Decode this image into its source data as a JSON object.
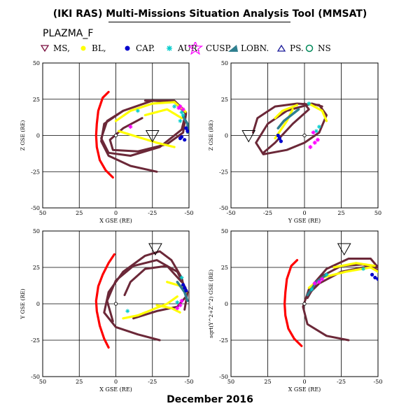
{
  "title": "(IKI RAS) Multi-Missions Situation Analysis Tool (MMSAT)",
  "subtitle": "PLAZMA_F",
  "footer": "December 2016",
  "legend": [
    {
      "symbol": "triangle-down",
      "color": "#7a1040",
      "label": "MS,"
    },
    {
      "symbol": "dot",
      "color": "#ffff00",
      "label": "BL,"
    },
    {
      "symbol": "dot",
      "color": "#0000cc",
      "label": "CAP."
    },
    {
      "symbol": "asterisk",
      "color": "#00cccc",
      "label": "AUR."
    },
    {
      "symbol": "star",
      "color": "#ff00ff",
      "label": "CUSP."
    },
    {
      "symbol": "wedge",
      "color": "#2f7f8f",
      "label": "LOBN."
    },
    {
      "symbol": "triangle-up",
      "color": "#1a1a99",
      "label": "PS."
    },
    {
      "symbol": "circle",
      "color": "#008a5a",
      "label": "NS"
    }
  ],
  "colors": {
    "orbit": "#6b2838",
    "boundary": "#ff0000",
    "bl": "#ffff00",
    "cap": "#0000cc",
    "aur": "#00cccc",
    "cusp": "#ff00ff",
    "lobn": "#2f7f8f"
  },
  "chart_data": [
    {
      "type": "scatter",
      "xlabel": "X GSE (RE)",
      "ylabel": "Z GSE (RE)",
      "xlim": [
        50,
        -50
      ],
      "ylim": [
        -50,
        50
      ],
      "xticks": [
        "50",
        "25",
        "0",
        "-25",
        "-50"
      ],
      "yticks": [
        "-50",
        "-25",
        "0",
        "25",
        "50"
      ],
      "grid": true,
      "marker_ms": [
        -25,
        0
      ],
      "magnetopause": [
        [
          5,
          30
        ],
        [
          9,
          26
        ],
        [
          12,
          17
        ],
        [
          13,
          8
        ],
        [
          13.5,
          0
        ],
        [
          13,
          -8
        ],
        [
          11,
          -17
        ],
        [
          7,
          -24
        ],
        [
          2,
          -29
        ]
      ],
      "orbits": [
        [
          [
            -28,
            -25
          ],
          [
            -10,
            -21
          ],
          [
            5,
            -14
          ],
          [
            10,
            -4
          ],
          [
            8,
            8
          ],
          [
            -5,
            17
          ],
          [
            -25,
            24
          ],
          [
            -40,
            23
          ],
          [
            -48,
            15
          ],
          [
            -46,
            2
          ],
          [
            -35,
            -6
          ],
          [
            -15,
            -11
          ],
          [
            2,
            -10
          ],
          [
            4,
            -3
          ],
          [
            -5,
            5
          ],
          [
            -18,
            12
          ]
        ],
        [
          [
            -5,
            17
          ],
          [
            6,
            10
          ],
          [
            10,
            -2
          ],
          [
            5,
            -12
          ],
          [
            -10,
            -14
          ],
          [
            -30,
            -8
          ],
          [
            -45,
            4
          ],
          [
            -48,
            16
          ],
          [
            -40,
            24
          ],
          [
            -20,
            24
          ]
        ]
      ],
      "bl_segments": [
        [
          [
            0,
            10
          ],
          [
            -10,
            17
          ],
          [
            -25,
            22
          ],
          [
            -40,
            23
          ],
          [
            -48,
            16
          ]
        ],
        [
          [
            -40,
            -8
          ],
          [
            -28,
            -5
          ],
          [
            -15,
            -1
          ],
          [
            -2,
            3
          ]
        ],
        [
          [
            -20,
            14
          ],
          [
            -35,
            18
          ],
          [
            -45,
            12
          ]
        ]
      ],
      "cap_points": [
        [
          -47,
          -3
        ],
        [
          -45,
          -1
        ],
        [
          -44,
          -2
        ],
        [
          -49,
          3
        ],
        [
          -48,
          5
        ]
      ],
      "aur_points": [
        [
          -45,
          16
        ],
        [
          -46,
          14
        ],
        [
          -44,
          10
        ],
        [
          -15,
          17
        ],
        [
          -40,
          20
        ]
      ],
      "cusp_points": [
        [
          -44,
          20
        ],
        [
          -46,
          18
        ],
        [
          -43,
          19
        ],
        [
          -10,
          6
        ]
      ],
      "lobn_segments": [
        [
          [
            -46,
            13
          ],
          [
            -49,
            8
          ],
          [
            -49,
            2
          ]
        ]
      ]
    },
    {
      "type": "scatter",
      "xlabel": "Y GSE (RE)",
      "ylabel": "Z GSE (RE)",
      "xlim": [
        -50,
        50
      ],
      "ylim": [
        -50,
        50
      ],
      "xticks": [
        "-50",
        "-25",
        "0",
        "25",
        "50"
      ],
      "yticks": [
        "-50",
        "-25",
        "0",
        "25",
        "50"
      ],
      "grid": true,
      "marker_ms": [
        -38,
        0
      ],
      "orbits": [
        [
          [
            -35,
            2
          ],
          [
            -32,
            12
          ],
          [
            -20,
            20
          ],
          [
            -5,
            22
          ],
          [
            10,
            21
          ],
          [
            15,
            14
          ],
          [
            10,
            2
          ],
          [
            0,
            -5
          ],
          [
            -12,
            -10
          ],
          [
            -28,
            -13
          ],
          [
            -33,
            -5
          ],
          [
            -25,
            8
          ],
          [
            -12,
            17
          ],
          [
            5,
            22
          ],
          [
            12,
            20
          ]
        ],
        [
          [
            -28,
            -12
          ],
          [
            -20,
            -5
          ],
          [
            -8,
            8
          ],
          [
            3,
            18
          ],
          [
            0,
            22
          ]
        ]
      ],
      "bl_segments": [
        [
          [
            -8,
            18
          ],
          [
            -12,
            10
          ],
          [
            -16,
            4
          ],
          [
            -20,
            -2
          ]
        ],
        [
          [
            3,
            22
          ],
          [
            12,
            17
          ],
          [
            15,
            10
          ]
        ],
        [
          [
            -20,
            12
          ],
          [
            -15,
            17
          ],
          [
            -5,
            21
          ]
        ]
      ],
      "cap_points": [
        [
          -17,
          -2
        ],
        [
          -16,
          -4
        ],
        [
          -18,
          0
        ]
      ],
      "aur_points": [
        [
          8,
          3
        ],
        [
          10,
          6
        ],
        [
          3,
          22
        ]
      ],
      "cusp_points": [
        [
          7,
          -5
        ],
        [
          9,
          -3
        ],
        [
          4,
          -8
        ],
        [
          6,
          2
        ]
      ],
      "lobn_segments": [
        [
          [
            -18,
            5
          ],
          [
            -14,
            10
          ],
          [
            -9,
            14
          ],
          [
            -4,
            18
          ]
        ]
      ]
    },
    {
      "type": "scatter",
      "xlabel": "X GSE (RE)",
      "ylabel": "Y GSE (RE)",
      "xlim": [
        50,
        -50
      ],
      "ylim": [
        50,
        -50
      ],
      "xticks": [
        "50",
        "25",
        "0",
        "-25",
        "-50"
      ],
      "yticks": [
        "-50",
        "-25",
        "0",
        "25",
        "50"
      ],
      "grid": true,
      "marker_ms": [
        -27,
        -38
      ],
      "magnetopause": [
        [
          5,
          30
        ],
        [
          8,
          24
        ],
        [
          11,
          15
        ],
        [
          13,
          5
        ],
        [
          13.5,
          -2
        ],
        [
          12,
          -12
        ],
        [
          9,
          -20
        ],
        [
          5,
          -28
        ],
        [
          1,
          -34
        ]
      ],
      "orbits": [
        [
          [
            -30,
            25
          ],
          [
            -15,
            21
          ],
          [
            0,
            16
          ],
          [
            8,
            6
          ],
          [
            5,
            -8
          ],
          [
            -5,
            -22
          ],
          [
            -20,
            -33
          ],
          [
            -30,
            -36
          ],
          [
            -38,
            -30
          ],
          [
            -45,
            -18
          ],
          [
            -48,
            -5
          ],
          [
            -42,
            2
          ],
          [
            -28,
            5
          ],
          [
            -12,
            10
          ]
        ],
        [
          [
            2,
            12
          ],
          [
            6,
            -2
          ],
          [
            0,
            -16
          ],
          [
            -12,
            -26
          ],
          [
            -28,
            -30
          ],
          [
            -42,
            -22
          ],
          [
            -49,
            -8
          ],
          [
            -47,
            4
          ]
        ],
        [
          [
            -6,
            -6
          ],
          [
            -10,
            -15
          ],
          [
            -20,
            -24
          ],
          [
            -35,
            -26
          ],
          [
            -45,
            -15
          ]
        ]
      ],
      "bl_segments": [
        [
          [
            -5,
            10
          ],
          [
            -15,
            8
          ],
          [
            -25,
            4
          ],
          [
            -35,
            0
          ],
          [
            -42,
            -5
          ]
        ],
        [
          [
            -35,
            -15
          ],
          [
            -45,
            -12
          ],
          [
            -48,
            -8
          ]
        ],
        [
          [
            -28,
            1
          ],
          [
            -38,
            3
          ],
          [
            -44,
            6
          ]
        ]
      ],
      "cap_points": [
        [
          -46,
          -13
        ],
        [
          -47,
          -11
        ],
        [
          -48,
          -9
        ]
      ],
      "aur_points": [
        [
          -45,
          -18
        ],
        [
          -8,
          5
        ],
        [
          -42,
          -1
        ]
      ],
      "cusp_points": [
        [
          -44,
          1
        ],
        [
          -42,
          3
        ],
        [
          -45,
          -2
        ]
      ],
      "lobn_segments": [
        [
          [
            -42,
            -15
          ],
          [
            -47,
            -8
          ],
          [
            -49,
            -2
          ]
        ]
      ]
    },
    {
      "type": "scatter",
      "xlabel": "X GSE (RE)",
      "ylabel": "sqrt(Y^2+Z^2) GSE (RE)",
      "xlim": [
        50,
        -50
      ],
      "ylim": [
        50,
        -50
      ],
      "xticks": [
        "50",
        "25",
        "0",
        "-25",
        "-50"
      ],
      "yticks": [
        "-50",
        "-25",
        "0",
        "25",
        "50"
      ],
      "grid": true,
      "marker_ms": [
        -27,
        -38
      ],
      "magnetopause": [
        [
          5,
          -30
        ],
        [
          9,
          -26
        ],
        [
          12,
          -17
        ],
        [
          13,
          -8
        ],
        [
          13.5,
          0
        ],
        [
          13,
          8
        ],
        [
          11,
          17
        ],
        [
          7,
          24
        ],
        [
          2,
          29
        ]
      ],
      "orbits": [
        [
          [
            -30,
            25
          ],
          [
            -15,
            22
          ],
          [
            -2,
            14
          ],
          [
            1,
            2
          ],
          [
            -3,
            -10
          ],
          [
            -15,
            -24
          ],
          [
            -30,
            -31
          ],
          [
            -45,
            -31
          ],
          [
            -50,
            -25
          ],
          [
            -40,
            -25
          ],
          [
            -25,
            -22
          ],
          [
            -10,
            -14
          ],
          [
            -4,
            -8
          ]
        ],
        [
          [
            -2,
            -4
          ],
          [
            -10,
            -18
          ],
          [
            -25,
            -26
          ],
          [
            -40,
            -27
          ],
          [
            -50,
            -23
          ]
        ]
      ],
      "bl_segments": [
        [
          [
            -3,
            -11
          ],
          [
            -12,
            -18
          ],
          [
            -28,
            -22
          ],
          [
            -45,
            -25
          ],
          [
            -50,
            -22
          ]
        ],
        [
          [
            -20,
            -25
          ],
          [
            -35,
            -28
          ],
          [
            -48,
            -26
          ]
        ]
      ],
      "cap_points": [
        [
          -48,
          -18
        ],
        [
          -50,
          -17
        ],
        [
          -46,
          -20
        ]
      ],
      "aur_points": [
        [
          -5,
          -10
        ],
        [
          -15,
          -20
        ],
        [
          -40,
          -24
        ]
      ],
      "cusp_points": [
        [
          -10,
          -15
        ],
        [
          -12,
          -17
        ],
        [
          -7,
          -14
        ]
      ],
      "lobn_segments": [
        [
          [
            -2,
            -6
          ],
          [
            -8,
            -15
          ],
          [
            -15,
            -20
          ]
        ]
      ]
    }
  ]
}
